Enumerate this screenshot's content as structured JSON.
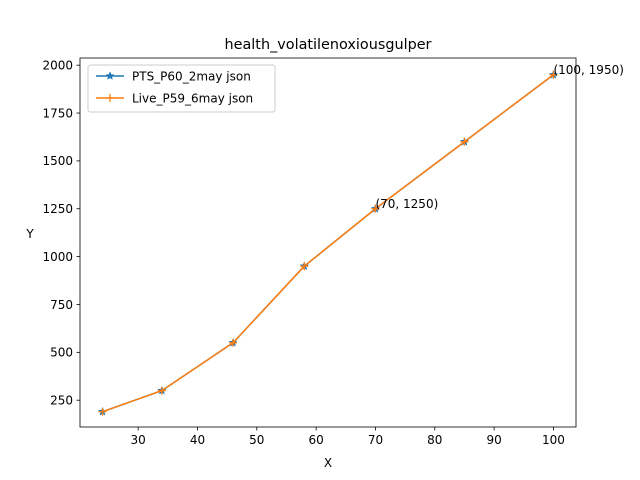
{
  "chart_data": {
    "type": "line",
    "title": "health_volatilenoxiousgulper",
    "xlabel": "X",
    "ylabel": "Y",
    "xlim": [
      20.2,
      103.8
    ],
    "ylim": [
      110,
      2037.5
    ],
    "xticks": [
      30,
      40,
      50,
      60,
      70,
      80,
      90,
      100
    ],
    "yticks": [
      250,
      500,
      750,
      1000,
      1250,
      1500,
      1750,
      2000
    ],
    "grid": false,
    "legend_position": "top-left",
    "x": [
      24,
      34,
      46,
      58,
      70,
      85,
      100
    ],
    "series": [
      {
        "name": "PTS_P60_2may json",
        "values": [
          190,
          300,
          550,
          950,
          1250,
          1600,
          1950
        ],
        "color": "#1f77b4",
        "marker": "star"
      },
      {
        "name": "Live_P59_6may json",
        "values": [
          190,
          300,
          550,
          950,
          1250,
          1600,
          1950
        ],
        "color": "#ff7f0e",
        "marker": "plus"
      }
    ],
    "annotations": [
      {
        "x": 70,
        "y": 1250,
        "text": "(70, 1250)"
      },
      {
        "x": 100,
        "y": 1950,
        "text": "(100, 1950)"
      }
    ]
  }
}
